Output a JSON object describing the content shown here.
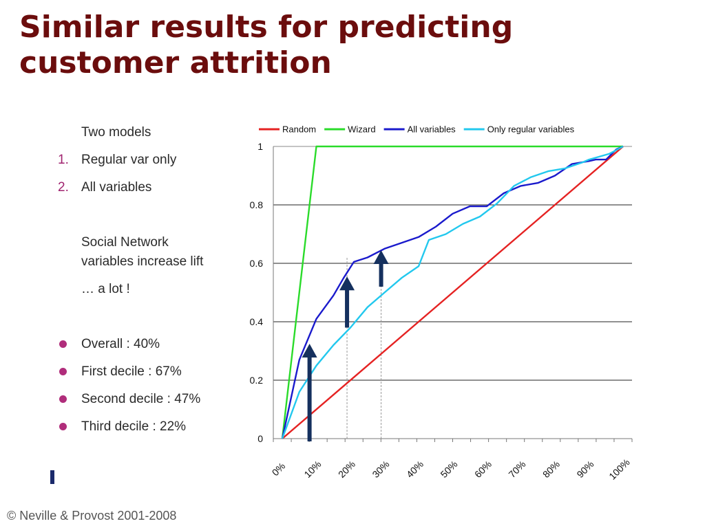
{
  "title": {
    "line1": "Similar results for predicting",
    "line2": "customer attrition"
  },
  "left": {
    "heading": "Two models",
    "models": [
      {
        "num": "1.",
        "label": "Regular var only"
      },
      {
        "num": "2.",
        "label": "All variables"
      }
    ],
    "sn_line1": "Social Network",
    "sn_line2": "variables increase lift",
    "alot": "… a lot !",
    "bullets": [
      "Overall : 40%",
      "First decile : 67%",
      "Second decile : 47%",
      "Third decile : 22%"
    ]
  },
  "footer": "© Neville & Provost 2001-2008",
  "chart_data": {
    "type": "line",
    "x_tick_labels": [
      "0%",
      "10%",
      "20%",
      "30%",
      "40%",
      "50%",
      "60%",
      "70%",
      "80%",
      "90%",
      "100%"
    ],
    "y_tick_labels": [
      "0",
      "0.2",
      "0.4",
      "0.6",
      "0.8",
      "1"
    ],
    "xlim": [
      0,
      100
    ],
    "ylim": [
      0,
      1
    ],
    "grid": "horizontal",
    "legend_position": "top",
    "series": [
      {
        "name": "Random",
        "color": "#e52222",
        "points": [
          [
            0,
            0
          ],
          [
            100,
            1
          ]
        ]
      },
      {
        "name": "Wizard",
        "color": "#2adb2a",
        "points": [
          [
            0,
            0
          ],
          [
            10,
            1
          ],
          [
            100,
            1
          ]
        ]
      },
      {
        "name": "All variables",
        "color": "#1a1acc",
        "points": [
          [
            0,
            0
          ],
          [
            5,
            0.27
          ],
          [
            10,
            0.41
          ],
          [
            15,
            0.49
          ],
          [
            18,
            0.55
          ],
          [
            21,
            0.605
          ],
          [
            25,
            0.62
          ],
          [
            30,
            0.65
          ],
          [
            35,
            0.67
          ],
          [
            40,
            0.69
          ],
          [
            45,
            0.725
          ],
          [
            50,
            0.77
          ],
          [
            55,
            0.795
          ],
          [
            60,
            0.795
          ],
          [
            65,
            0.84
          ],
          [
            70,
            0.865
          ],
          [
            75,
            0.875
          ],
          [
            80,
            0.9
          ],
          [
            85,
            0.94
          ],
          [
            90,
            0.95
          ],
          [
            92,
            0.955
          ],
          [
            95,
            0.955
          ],
          [
            98,
            0.99
          ],
          [
            100,
            1
          ]
        ]
      },
      {
        "name": "Only regular variables",
        "color": "#22c8ee",
        "points": [
          [
            0,
            0
          ],
          [
            5,
            0.16
          ],
          [
            10,
            0.25
          ],
          [
            15,
            0.32
          ],
          [
            20,
            0.38
          ],
          [
            25,
            0.45
          ],
          [
            30,
            0.5
          ],
          [
            35,
            0.55
          ],
          [
            40,
            0.59
          ],
          [
            43,
            0.68
          ],
          [
            48,
            0.7
          ],
          [
            53,
            0.735
          ],
          [
            58,
            0.76
          ],
          [
            63,
            0.805
          ],
          [
            68,
            0.865
          ],
          [
            73,
            0.895
          ],
          [
            78,
            0.915
          ],
          [
            83,
            0.925
          ],
          [
            88,
            0.945
          ],
          [
            90,
            0.955
          ],
          [
            93,
            0.965
          ],
          [
            96,
            0.975
          ],
          [
            100,
            1
          ]
        ]
      }
    ],
    "reference_lines_x": [
      19,
      29
    ],
    "arrows": [
      {
        "x": 8,
        "from": 0,
        "to": 0.32
      },
      {
        "x": 19,
        "from": 0.38,
        "to": 0.55
      },
      {
        "x": 29,
        "from": 0.52,
        "to": 0.64
      }
    ]
  }
}
